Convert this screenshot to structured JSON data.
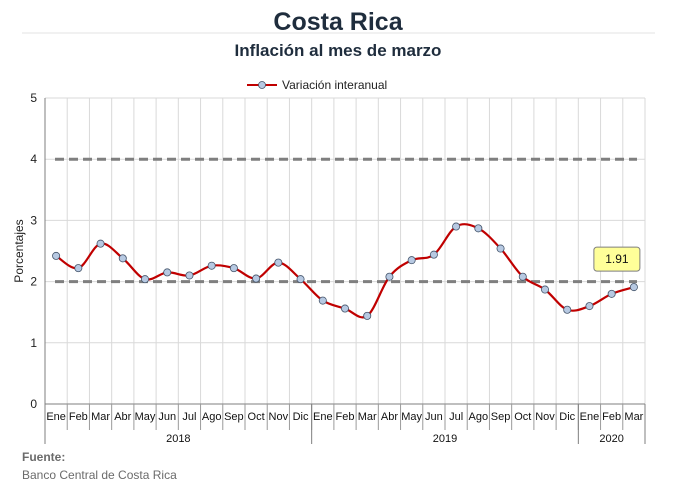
{
  "chart_data": {
    "type": "line",
    "title": "Costa Rica",
    "subtitle": "Inflación al mes de marzo",
    "ylabel": "Porcentajes",
    "ylim": [
      0,
      5
    ],
    "yticks": [
      0,
      1,
      2,
      3,
      4,
      5
    ],
    "grid": true,
    "legend_position": "top-center",
    "categories": [
      "Ene",
      "Feb",
      "Mar",
      "Abr",
      "May",
      "Jun",
      "Jul",
      "Ago",
      "Sep",
      "Oct",
      "Nov",
      "Dic",
      "Ene",
      "Feb",
      "Mar",
      "Abr",
      "May",
      "Jun",
      "Jul",
      "Ago",
      "Sep",
      "Oct",
      "Nov",
      "Dic",
      "Ene",
      "Feb",
      "Mar"
    ],
    "year_groups": [
      {
        "label": "2018",
        "count": 12
      },
      {
        "label": "2019",
        "count": 12
      },
      {
        "label": "2020",
        "count": 3
      }
    ],
    "series": [
      {
        "name": "Variación interanual",
        "color": "#c00000",
        "marker_fill": "#b7c9e2",
        "values": [
          2.42,
          2.22,
          2.62,
          2.38,
          2.04,
          2.15,
          2.1,
          2.26,
          2.22,
          2.05,
          2.31,
          2.04,
          1.69,
          1.56,
          1.44,
          2.08,
          2.35,
          2.44,
          2.9,
          2.87,
          2.54,
          2.08,
          1.87,
          1.54,
          1.6,
          1.8,
          1.91
        ]
      }
    ],
    "reference_lines": [
      {
        "value": 4,
        "style": "dashed",
        "color": "#7f7f7f"
      },
      {
        "value": 2,
        "style": "dashed",
        "color": "#7f7f7f"
      }
    ],
    "annotation": {
      "text": "1.91",
      "index": 26,
      "fill": "#ffff99"
    }
  },
  "source": {
    "heading": "Fuente:",
    "text": "Banco Central de Costa Rica"
  }
}
